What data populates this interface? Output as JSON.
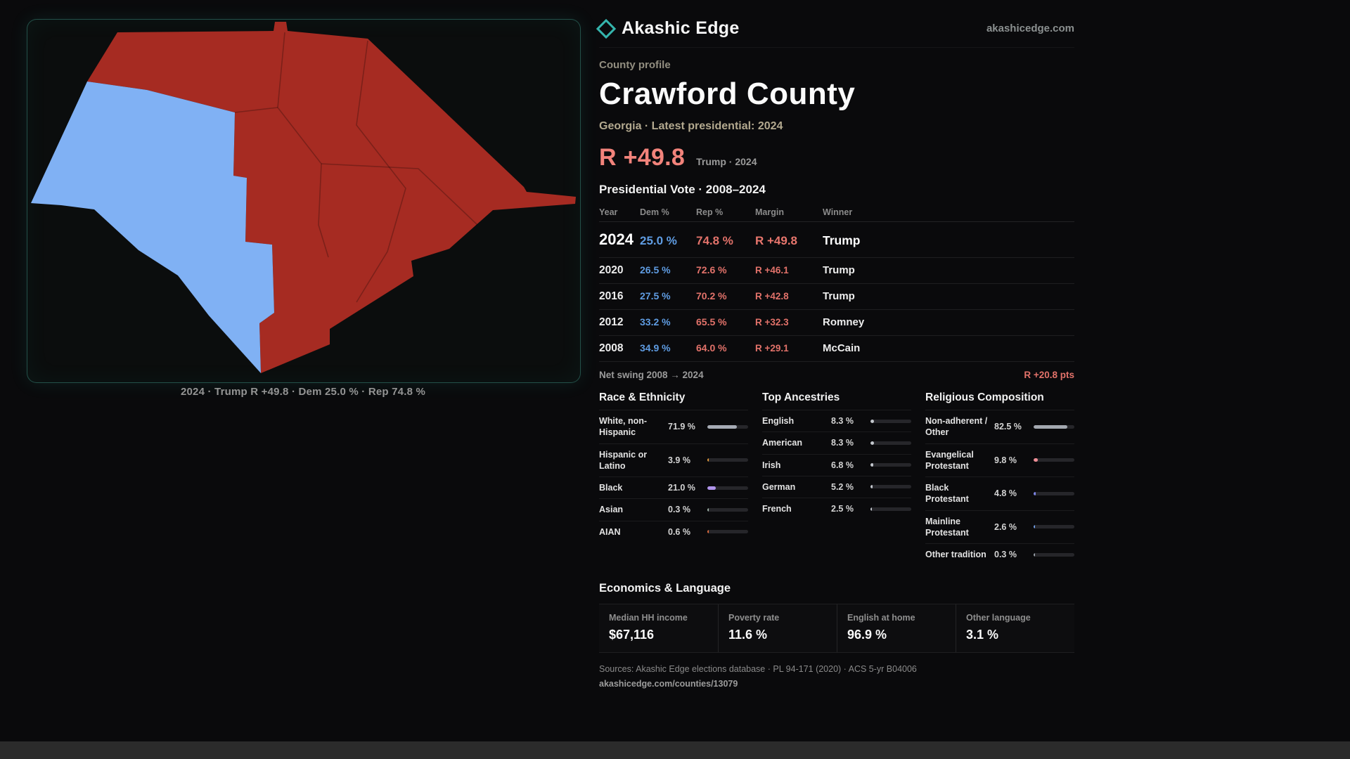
{
  "brand": {
    "name": "Akashic Edge",
    "domain": "akashicedge.com"
  },
  "map": {
    "caption": "2024 · Trump R +49.8 · Dem 25.0 % · Rep 74.8 %",
    "dem_color": "#80b1f4",
    "rep_color": "#a62b22"
  },
  "profile": {
    "kicker": "County profile",
    "title": "Crawford County",
    "subtitle": "Georgia · Latest presidential: 2024",
    "headline_margin": "R +49.8",
    "headline_note": "Trump · 2024",
    "table_title": "Presidential Vote · 2008–2024"
  },
  "vote_table": {
    "columns": [
      "Year",
      "Dem %",
      "Rep %",
      "Margin",
      "Winner"
    ],
    "rows": [
      {
        "year": "2024",
        "dem": "25.0 %",
        "rep": "74.8 %",
        "margin": "R +49.8",
        "winner": "Trump"
      },
      {
        "year": "2020",
        "dem": "26.5 %",
        "rep": "72.6 %",
        "margin": "R +46.1",
        "winner": "Trump"
      },
      {
        "year": "2016",
        "dem": "27.5 %",
        "rep": "70.2 %",
        "margin": "R +42.8",
        "winner": "Trump"
      },
      {
        "year": "2012",
        "dem": "33.2 %",
        "rep": "65.5 %",
        "margin": "R +32.3",
        "winner": "Romney"
      },
      {
        "year": "2008",
        "dem": "34.9 %",
        "rep": "64.0 %",
        "margin": "R +29.1",
        "winner": "McCain"
      }
    ],
    "net_swing_label": "Net swing 2008 → 2024",
    "net_swing_value": "R +20.8 pts"
  },
  "demographics": {
    "race": {
      "title": "Race & Ethnicity",
      "rows": [
        {
          "label": "White, non-Hispanic",
          "value": "71.9 %",
          "pct": 71.9,
          "color": "#a6abb5"
        },
        {
          "label": "Hispanic or Latino",
          "value": "3.9 %",
          "pct": 3.9,
          "color": "#e59a3a"
        },
        {
          "label": "Black",
          "value": "21.0 %",
          "pct": 21.0,
          "color": "#b195ec"
        },
        {
          "label": "Asian",
          "value": "0.3 %",
          "pct": 0.3,
          "color": "#9fb3a8"
        },
        {
          "label": "AIAN",
          "value": "0.6 %",
          "pct": 0.6,
          "color": "#e06a3c"
        }
      ]
    },
    "ancestries": {
      "title": "Top Ancestries",
      "rows": [
        {
          "label": "English",
          "value": "8.3 %",
          "pct": 8.3,
          "color": "#c3c7cd"
        },
        {
          "label": "American",
          "value": "8.3 %",
          "pct": 8.3,
          "color": "#c3c7cd"
        },
        {
          "label": "Irish",
          "value": "6.8 %",
          "pct": 6.8,
          "color": "#c3c7cd"
        },
        {
          "label": "German",
          "value": "5.2 %",
          "pct": 5.2,
          "color": "#c3c7cd"
        },
        {
          "label": "French",
          "value": "2.5 %",
          "pct": 2.5,
          "color": "#c3c7cd"
        }
      ]
    },
    "religion": {
      "title": "Religious Composition",
      "rows": [
        {
          "label": "Non-adherent / Other",
          "value": "82.5 %",
          "pct": 82.5,
          "color": "#a3a8b0"
        },
        {
          "label": "Evangelical Protestant",
          "value": "9.8 %",
          "pct": 9.8,
          "color": "#ef8e96"
        },
        {
          "label": "Black Protestant",
          "value": "4.8 %",
          "pct": 4.8,
          "color": "#7d86e8"
        },
        {
          "label": "Mainline Protestant",
          "value": "2.6 %",
          "pct": 2.6,
          "color": "#6f9ce4"
        },
        {
          "label": "Other tradition",
          "value": "0.3 %",
          "pct": 0.3,
          "color": "#9aa0a8"
        }
      ]
    }
  },
  "economics": {
    "title": "Economics & Language",
    "stats": [
      {
        "label": "Median HH income",
        "value": "$67,116"
      },
      {
        "label": "Poverty rate",
        "value": "11.6 %"
      },
      {
        "label": "English at home",
        "value": "96.9 %"
      },
      {
        "label": "Other language",
        "value": "3.1 %"
      }
    ]
  },
  "footer": {
    "sources": "Sources: Akashic Edge elections database · PL 94-171 (2020) · ACS 5-yr B04006",
    "permalink": "akashicedge.com/counties/13079"
  }
}
